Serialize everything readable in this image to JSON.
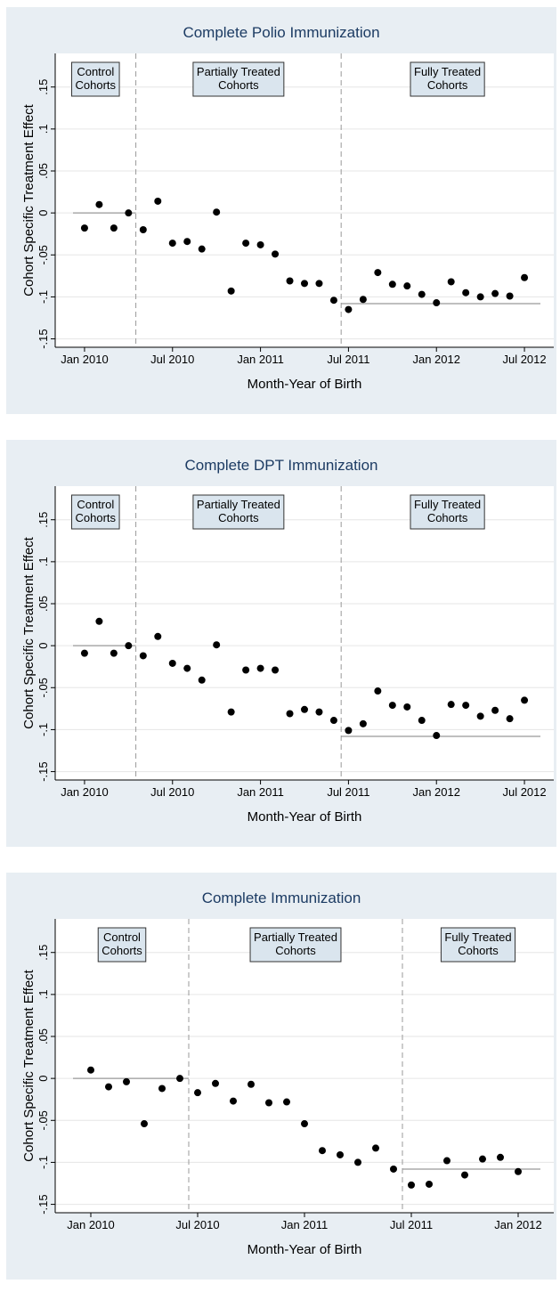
{
  "chart_data": [
    {
      "type": "scatter",
      "title": "Complete Polio Immunization",
      "x_label": "Month-Year of Birth",
      "y_label": "Cohort Specific Treatment Effect",
      "color": "#000000",
      "grid": true,
      "x": [
        "2010-01",
        "2010-02",
        "2010-03",
        "2010-04",
        "2010-05",
        "2010-06",
        "2010-07",
        "2010-08",
        "2010-09",
        "2010-10",
        "2010-11",
        "2010-12",
        "2011-01",
        "2011-02",
        "2011-03",
        "2011-04",
        "2011-05",
        "2011-06",
        "2011-07",
        "2011-08",
        "2011-09",
        "2011-10",
        "2011-11",
        "2011-12",
        "2012-01",
        "2012-02",
        "2012-03",
        "2012-04",
        "2012-05",
        "2012-06",
        "2012-07"
      ],
      "values": [
        -0.018,
        0.01,
        -0.018,
        0.0,
        -0.02,
        0.014,
        -0.036,
        -0.034,
        -0.043,
        0.001,
        -0.093,
        -0.036,
        -0.038,
        -0.049,
        -0.081,
        -0.084,
        -0.084,
        -0.104,
        -0.115,
        -0.103,
        -0.071,
        -0.085,
        -0.087,
        -0.097,
        -0.107,
        -0.082,
        -0.095,
        -0.1,
        -0.096,
        -0.099,
        -0.077
      ],
      "regions": [
        {
          "label": [
            "Control",
            "Cohorts"
          ],
          "start": "2010-01",
          "end": "2010-04"
        },
        {
          "label": [
            "Partially Treated",
            "Cohorts"
          ],
          "start": "2010-05",
          "end": "2011-06"
        },
        {
          "label": [
            "Fully Treated",
            "Cohorts"
          ],
          "start": "2011-07",
          "end": "2012-07"
        }
      ],
      "reference_lines": [
        {
          "y": 0,
          "region": 0
        },
        {
          "y": -0.108,
          "region": 2
        }
      ],
      "xlim": [
        "2009-11",
        "2012-09"
      ],
      "xticks": [
        {
          "value": "2010-01",
          "label": "Jan 2010"
        },
        {
          "value": "2010-07",
          "label": "Jul 2010"
        },
        {
          "value": "2011-01",
          "label": "Jan 2011"
        },
        {
          "value": "2011-07",
          "label": "Jul 2011"
        },
        {
          "value": "2012-01",
          "label": "Jan 2012"
        },
        {
          "value": "2012-07",
          "label": "Jul 2012"
        }
      ],
      "ylim": [
        -0.16,
        0.19
      ],
      "yticks": [
        {
          "value": -0.15,
          "label": "-.15"
        },
        {
          "value": -0.1,
          "label": "-.1"
        },
        {
          "value": -0.05,
          "label": "-.05"
        },
        0,
        {
          "value": 0.05,
          "label": ".05"
        },
        {
          "value": 0.1,
          "label": ".1"
        },
        {
          "value": 0.15,
          "label": ".15"
        }
      ]
    },
    {
      "type": "scatter",
      "title": "Complete DPT Immunization",
      "x_label": "Month-Year of Birth",
      "y_label": "Cohort Specific Treatment Effect",
      "color": "#000000",
      "grid": true,
      "x": [
        "2010-01",
        "2010-02",
        "2010-03",
        "2010-04",
        "2010-05",
        "2010-06",
        "2010-07",
        "2010-08",
        "2010-09",
        "2010-10",
        "2010-11",
        "2010-12",
        "2011-01",
        "2011-02",
        "2011-03",
        "2011-04",
        "2011-05",
        "2011-06",
        "2011-07",
        "2011-08",
        "2011-09",
        "2011-10",
        "2011-11",
        "2011-12",
        "2012-01",
        "2012-02",
        "2012-03",
        "2012-04",
        "2012-05",
        "2012-06",
        "2012-07"
      ],
      "values": [
        -0.009,
        0.029,
        -0.009,
        0.0,
        -0.012,
        0.011,
        -0.021,
        -0.027,
        -0.041,
        0.001,
        -0.079,
        -0.029,
        -0.027,
        -0.029,
        -0.081,
        -0.076,
        -0.079,
        -0.089,
        -0.101,
        -0.093,
        -0.054,
        -0.071,
        -0.073,
        -0.089,
        -0.107,
        -0.07,
        -0.071,
        -0.084,
        -0.077,
        -0.087,
        -0.065
      ],
      "regions": [
        {
          "label": [
            "Control",
            "Cohorts"
          ],
          "start": "2010-01",
          "end": "2010-04"
        },
        {
          "label": [
            "Partially Treated",
            "Cohorts"
          ],
          "start": "2010-05",
          "end": "2011-06"
        },
        {
          "label": [
            "Fully Treated",
            "Cohorts"
          ],
          "start": "2011-07",
          "end": "2012-07"
        }
      ],
      "reference_lines": [
        {
          "y": 0,
          "region": 0
        },
        {
          "y": -0.108,
          "region": 2
        }
      ],
      "xlim": [
        "2009-11",
        "2012-09"
      ],
      "xticks": [
        {
          "value": "2010-01",
          "label": "Jan 2010"
        },
        {
          "value": "2010-07",
          "label": "Jul 2010"
        },
        {
          "value": "2011-01",
          "label": "Jan 2011"
        },
        {
          "value": "2011-07",
          "label": "Jul 2011"
        },
        {
          "value": "2012-01",
          "label": "Jan 2012"
        },
        {
          "value": "2012-07",
          "label": "Jul 2012"
        }
      ],
      "ylim": [
        -0.16,
        0.19
      ],
      "yticks": [
        {
          "value": -0.15,
          "label": "-.15"
        },
        {
          "value": -0.1,
          "label": "-.1"
        },
        {
          "value": -0.05,
          "label": "-.05"
        },
        0,
        {
          "value": 0.05,
          "label": ".05"
        },
        {
          "value": 0.1,
          "label": ".1"
        },
        {
          "value": 0.15,
          "label": ".15"
        }
      ]
    },
    {
      "type": "scatter",
      "title": "Complete Immunization",
      "x_label": "Month-Year of Birth",
      "y_label": "Cohort Specific Treatment Effect",
      "color": "#000000",
      "grid": true,
      "x": [
        "2010-01",
        "2010-02",
        "2010-03",
        "2010-04",
        "2010-05",
        "2010-06",
        "2010-07",
        "2010-08",
        "2010-09",
        "2010-10",
        "2010-11",
        "2010-12",
        "2011-01",
        "2011-02",
        "2011-03",
        "2011-04",
        "2011-05",
        "2011-06",
        "2011-07",
        "2011-08",
        "2011-09",
        "2011-10",
        "2011-11",
        "2011-12",
        "2012-01"
      ],
      "values": [
        0.01,
        -0.01,
        -0.004,
        -0.054,
        -0.012,
        0.0,
        -0.017,
        -0.006,
        -0.027,
        -0.007,
        -0.029,
        -0.028,
        -0.054,
        -0.086,
        -0.091,
        -0.1,
        -0.083,
        -0.108,
        -0.127,
        -0.126,
        -0.098,
        -0.115,
        -0.096,
        -0.094,
        -0.111
      ],
      "regions": [
        {
          "label": [
            "Control",
            "Cohorts"
          ],
          "start": "2010-01",
          "end": "2010-06"
        },
        {
          "label": [
            "Partially Treated",
            "Cohorts"
          ],
          "start": "2010-07",
          "end": "2011-06"
        },
        {
          "label": [
            "Fully Treated",
            "Cohorts"
          ],
          "start": "2011-07",
          "end": "2012-01"
        }
      ],
      "reference_lines": [
        {
          "y": 0,
          "region": 0
        },
        {
          "y": -0.108,
          "region": 2
        }
      ],
      "xlim": [
        "2009-11",
        "2012-03"
      ],
      "xticks": [
        {
          "value": "2010-01",
          "label": "Jan 2010"
        },
        {
          "value": "2010-07",
          "label": "Jul 2010"
        },
        {
          "value": "2011-01",
          "label": "Jan 2011"
        },
        {
          "value": "2011-07",
          "label": "Jul 2011"
        },
        {
          "value": "2012-01",
          "label": "Jan 2012"
        }
      ],
      "ylim": [
        -0.16,
        0.19
      ],
      "yticks": [
        {
          "value": -0.15,
          "label": "-.15"
        },
        {
          "value": -0.1,
          "label": "-.1"
        },
        {
          "value": -0.05,
          "label": "-.05"
        },
        0,
        {
          "value": 0.05,
          "label": ".05"
        },
        {
          "value": 0.1,
          "label": ".1"
        },
        {
          "value": 0.15,
          "label": ".15"
        }
      ]
    }
  ]
}
